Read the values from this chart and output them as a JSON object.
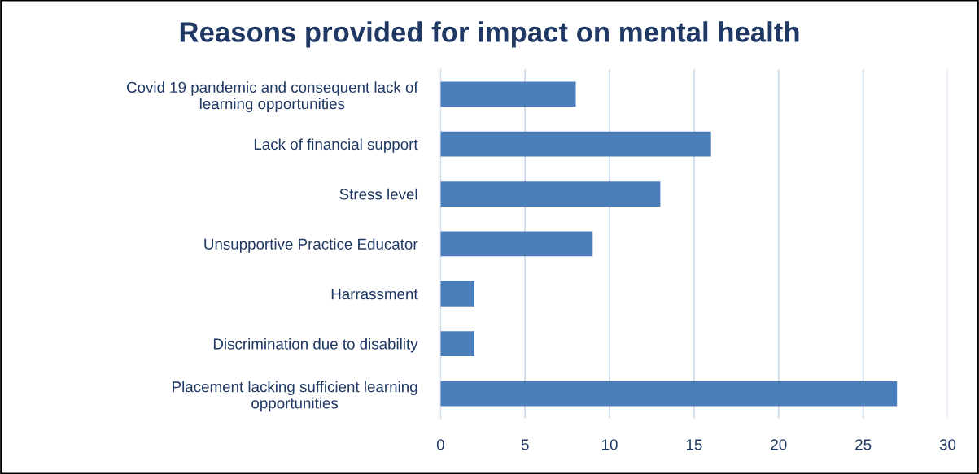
{
  "chart_data": {
    "type": "bar",
    "orientation": "horizontal",
    "title": "Reasons provided for impact on mental health",
    "categories": [
      "Covid 19 pandemic and consequent lack of\nlearning opportunities",
      "Lack of financial support",
      "Stress level",
      "Unsupportive Practice Educator",
      "Harrassment",
      "Discrimination due to disability",
      "Placement lacking sufficient learning\nopportunities"
    ],
    "values": [
      8,
      16,
      13,
      9,
      2,
      2,
      27
    ],
    "color": "#4a7ebb",
    "xlim": [
      0,
      30
    ],
    "xticks": [
      0,
      5,
      10,
      15,
      20,
      25,
      30
    ],
    "grid": "x",
    "legend": false
  }
}
